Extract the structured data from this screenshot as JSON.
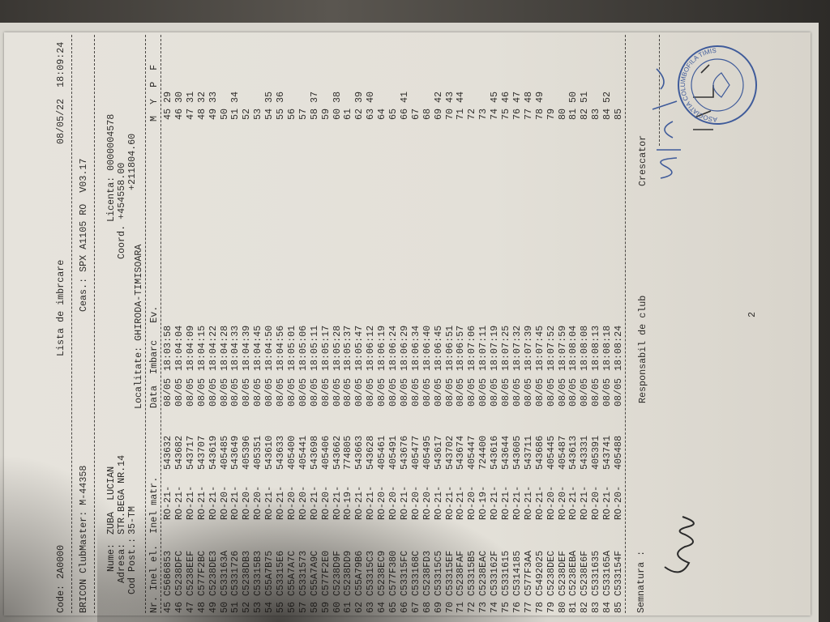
{
  "header": {
    "code": "Code: 2A0000",
    "title": "Lista de imbrcare",
    "datetime": "08/05/22  18:09:24",
    "club": "BRICON ClubMaster: M-44358",
    "ceas": "Ceas.: SPX A1105 RO  V03.17",
    "nume_label": "Nume:",
    "nume": "ZUBA  LUCIAN",
    "adresa_label": "Adresa:",
    "adresa": "STR.BEGA NR.14",
    "codpost_label": "Cod Post.:",
    "codpost": "35-TM",
    "licenta": "Licenta: 0000004578",
    "coord": "Coord. +454558.00",
    "coord2": "+211804.60",
    "localitate": "Localitate: GHIRODA-TIMISOARA"
  },
  "columns": {
    "left": "Nr. Inel el.  Inel matr.",
    "mid": "Data  Imbarc   Ev.",
    "right": "M  Y  P  F"
  },
  "rows": [
    {
      "nr": "45",
      "el": "C5686853",
      "serie": "RO-21-",
      "matr": "543632",
      "data": "08/05",
      "ora": "18:03:58",
      "m": "45",
      "y": "29"
    },
    {
      "nr": "46",
      "el": "C5238DFC",
      "serie": "RO-21-",
      "matr": "543682",
      "data": "08/05",
      "ora": "18:04:04",
      "m": "46",
      "y": "30"
    },
    {
      "nr": "47",
      "el": "C5238EEF",
      "serie": "RO-21-",
      "matr": "543717",
      "data": "08/05",
      "ora": "18:04:09",
      "m": "47",
      "y": "31"
    },
    {
      "nr": "48",
      "el": "C577F2BC",
      "serie": "RO-21-",
      "matr": "543707",
      "data": "08/05",
      "ora": "18:04:15",
      "m": "48",
      "y": "32"
    },
    {
      "nr": "49",
      "el": "C5238DE3",
      "serie": "RO-21-",
      "matr": "543619",
      "data": "08/05",
      "ora": "18:04:22",
      "m": "49",
      "y": "33"
    },
    {
      "nr": "50",
      "el": "C533163A",
      "serie": "RO-20-",
      "matr": "405485",
      "data": "08/05",
      "ora": "18:04:28",
      "m": "50",
      "y": ""
    },
    {
      "nr": "51",
      "el": "C5331726",
      "serie": "RO-21-",
      "matr": "543649",
      "data": "08/05",
      "ora": "18:04:33",
      "m": "51",
      "y": "34"
    },
    {
      "nr": "52",
      "el": "C5238DB3",
      "serie": "RO-20-",
      "matr": "405396",
      "data": "08/05",
      "ora": "18:04:39",
      "m": "52",
      "y": ""
    },
    {
      "nr": "53",
      "el": "C53315B3",
      "serie": "RO-20-",
      "matr": "405351",
      "data": "08/05",
      "ora": "18:04:45",
      "m": "53",
      "y": ""
    },
    {
      "nr": "54",
      "el": "C55A7B75",
      "serie": "RO-21-",
      "matr": "543610",
      "data": "08/05",
      "ora": "18:04:50",
      "m": "54",
      "y": "35"
    },
    {
      "nr": "55",
      "el": "C53315E6",
      "serie": "RO-21-",
      "matr": "543633",
      "data": "08/05",
      "ora": "18:04:56",
      "m": "55",
      "y": "36"
    },
    {
      "nr": "56",
      "el": "C55A7A7C",
      "serie": "RO-20-",
      "matr": "405400",
      "data": "08/05",
      "ora": "18:05:01",
      "m": "56",
      "y": ""
    },
    {
      "nr": "57",
      "el": "C5331573",
      "serie": "RO-20-",
      "matr": "405441",
      "data": "08/05",
      "ora": "18:05:06",
      "m": "57",
      "y": ""
    },
    {
      "nr": "58",
      "el": "C55A7A9C",
      "serie": "RO-21-",
      "matr": "543698",
      "data": "08/05",
      "ora": "18:05:11",
      "m": "58",
      "y": "37"
    },
    {
      "nr": "59",
      "el": "C577F2E0",
      "serie": "RO-20-",
      "matr": "405406",
      "data": "08/05",
      "ora": "18:05:17",
      "m": "59",
      "y": ""
    },
    {
      "nr": "60",
      "el": "C5238D9F",
      "serie": "RO-21-",
      "matr": "543662",
      "data": "08/05",
      "ora": "18:05:28",
      "m": "60",
      "y": "38"
    },
    {
      "nr": "61",
      "el": "C5238DD9",
      "serie": "RO-19-",
      "matr": "774805",
      "data": "08/05",
      "ora": "18:05:37",
      "m": "61",
      "y": ""
    },
    {
      "nr": "62",
      "el": "C55A79B6",
      "serie": "RO-21-",
      "matr": "543663",
      "data": "08/05",
      "ora": "18:05:47",
      "m": "62",
      "y": "39"
    },
    {
      "nr": "63",
      "el": "C53315C3",
      "serie": "RO-21-",
      "matr": "543628",
      "data": "08/05",
      "ora": "18:06:12",
      "m": "63",
      "y": "40"
    },
    {
      "nr": "64",
      "el": "C5238EC9",
      "serie": "RO-20-",
      "matr": "405461",
      "data": "08/05",
      "ora": "18:06:19",
      "m": "64",
      "y": ""
    },
    {
      "nr": "65",
      "el": "C577F380",
      "serie": "RO-20-",
      "matr": "405491",
      "data": "08/05",
      "ora": "18:06:24",
      "m": "65",
      "y": ""
    },
    {
      "nr": "66",
      "el": "C53315FC",
      "serie": "RO-21-",
      "matr": "543676",
      "data": "08/05",
      "ora": "18:06:29",
      "m": "66",
      "y": "41"
    },
    {
      "nr": "67",
      "el": "C533168C",
      "serie": "RO-20-",
      "matr": "405477",
      "data": "08/05",
      "ora": "18:06:34",
      "m": "67",
      "y": ""
    },
    {
      "nr": "68",
      "el": "C5238FD3",
      "serie": "RO-20-",
      "matr": "405495",
      "data": "08/05",
      "ora": "18:06:40",
      "m": "68",
      "y": ""
    },
    {
      "nr": "69",
      "el": "C53315C5",
      "serie": "RO-21-",
      "matr": "543617",
      "data": "08/05",
      "ora": "18:06:45",
      "m": "69",
      "y": "42"
    },
    {
      "nr": "70",
      "el": "C53315EF",
      "serie": "RO-21-",
      "matr": "543702",
      "data": "08/05",
      "ora": "18:06:51",
      "m": "70",
      "y": "43"
    },
    {
      "nr": "71",
      "el": "C5238FAF",
      "serie": "RO-21-",
      "matr": "543674",
      "data": "08/05",
      "ora": "18:06:57",
      "m": "71",
      "y": "44"
    },
    {
      "nr": "72",
      "el": "C53315B5",
      "serie": "RO-20-",
      "matr": "405447",
      "data": "08/05",
      "ora": "18:07:06",
      "m": "72",
      "y": ""
    },
    {
      "nr": "73",
      "el": "C5238EAC",
      "serie": "RO-19-",
      "matr": "724400",
      "data": "08/05",
      "ora": "18:07:11",
      "m": "73",
      "y": ""
    },
    {
      "nr": "74",
      "el": "C533162F",
      "serie": "RO-21-",
      "matr": "543616",
      "data": "08/05",
      "ora": "18:07:19",
      "m": "74",
      "y": "45"
    },
    {
      "nr": "75",
      "el": "C5331615",
      "serie": "RO-21-",
      "matr": "543644",
      "data": "08/05",
      "ora": "18:07:25",
      "m": "75",
      "y": "46"
    },
    {
      "nr": "76",
      "el": "C5314185",
      "serie": "RO-21-",
      "matr": "543605",
      "data": "08/05",
      "ora": "18:07:32",
      "m": "76",
      "y": "47"
    },
    {
      "nr": "77",
      "el": "C577F3AA",
      "serie": "RO-21-",
      "matr": "543711",
      "data": "08/05",
      "ora": "18:07:39",
      "m": "77",
      "y": "48"
    },
    {
      "nr": "78",
      "el": "C5492025",
      "serie": "RO-21-",
      "matr": "543686",
      "data": "08/05",
      "ora": "18:07:45",
      "m": "78",
      "y": "49"
    },
    {
      "nr": "79",
      "el": "C5238DEC",
      "serie": "RO-20-",
      "matr": "405445",
      "data": "08/05",
      "ora": "18:07:52",
      "m": "79",
      "y": ""
    },
    {
      "nr": "80",
      "el": "C5238DEF",
      "serie": "RO-20-",
      "matr": "405487",
      "data": "08/05",
      "ora": "18:07:59",
      "m": "80",
      "y": ""
    },
    {
      "nr": "81",
      "el": "C5238EBA",
      "serie": "RO-21-",
      "matr": "543613",
      "data": "08/05",
      "ora": "18:08:04",
      "m": "81",
      "y": "50"
    },
    {
      "nr": "82",
      "el": "C5238E6F",
      "serie": "RO-21-",
      "matr": "543331",
      "data": "08/05",
      "ora": "18:08:08",
      "m": "82",
      "y": "51"
    },
    {
      "nr": "83",
      "el": "C5331635",
      "serie": "RO-20-",
      "matr": "405391",
      "data": "08/05",
      "ora": "18:08:13",
      "m": "83",
      "y": ""
    },
    {
      "nr": "84",
      "el": "C533165A",
      "serie": "RO-21-",
      "matr": "543741",
      "data": "08/05",
      "ora": "18:08:18",
      "m": "84",
      "y": "52"
    },
    {
      "nr": "85",
      "el": "C533154F",
      "serie": "RO-20-",
      "matr": "405488",
      "data": "08/05",
      "ora": "18:08:24",
      "m": "85",
      "y": ""
    }
  ],
  "footer": {
    "semnatura": "Semnatura :",
    "responsabil": "Responsabil de club",
    "crescator": "Crescator",
    "page_number": "2"
  },
  "stamp": {
    "text": "ASOCIATIA COLUMBOFILA TIMIS",
    "ink_color": "#3f5b9a"
  }
}
